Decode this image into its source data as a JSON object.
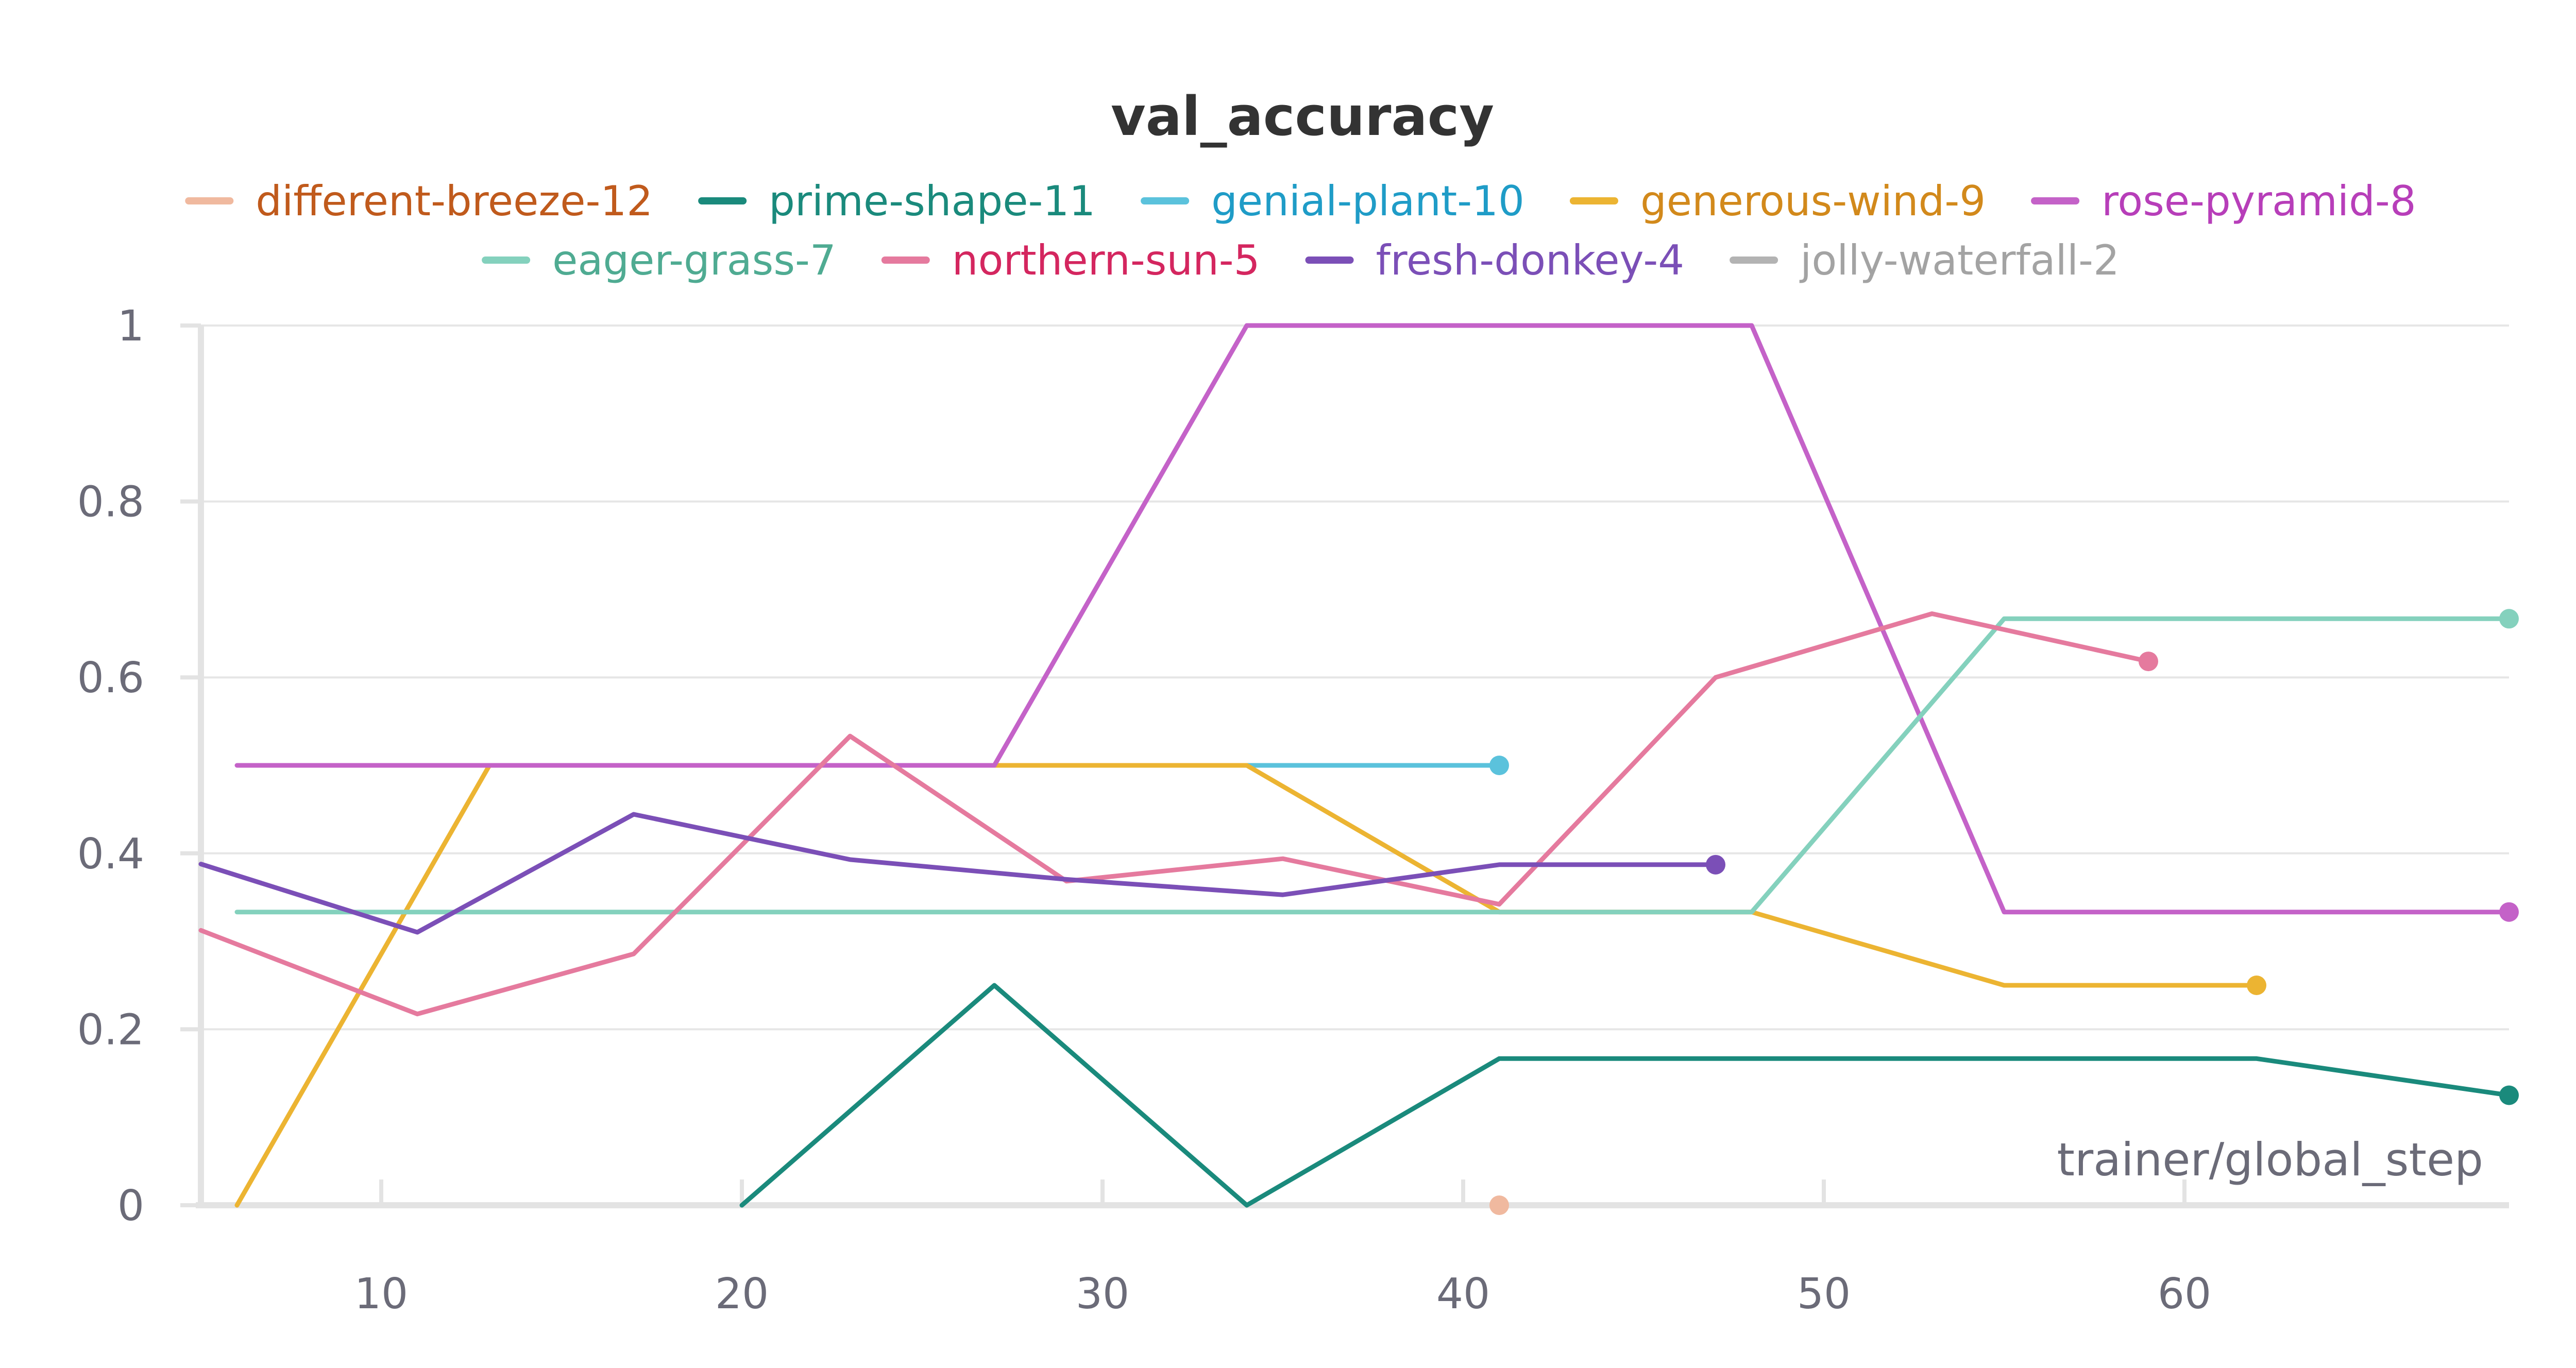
{
  "chart_data": {
    "type": "line",
    "title": "val_accuracy",
    "xlabel": "trainer/global_step",
    "ylabel": "",
    "xlim": [
      5,
      69
    ],
    "ylim": [
      0,
      1
    ],
    "x_ticks": [
      10,
      20,
      30,
      40,
      50,
      60
    ],
    "y_ticks": [
      0,
      0.2,
      0.4,
      0.6,
      0.8,
      1
    ],
    "y_tick_labels": [
      "0",
      "0.2",
      "0.4",
      "0.6",
      "0.8",
      "1"
    ],
    "grid": true,
    "legend_position": "top",
    "series": [
      {
        "name": "different-breeze-12",
        "line_color": "#f0b99f",
        "label_color": "#c05a1c",
        "points": [
          [
            41,
            0
          ]
        ]
      },
      {
        "name": "prime-shape-11",
        "line_color": "#1a8a7c",
        "label_color": "#1a8a7c",
        "points": [
          [
            20,
            0
          ],
          [
            27,
            0.25
          ],
          [
            34,
            0
          ],
          [
            41,
            0.1667
          ],
          [
            48,
            0.1667
          ],
          [
            55,
            0.1667
          ],
          [
            62,
            0.1667
          ],
          [
            69,
            0.125
          ]
        ]
      },
      {
        "name": "genial-plant-10",
        "line_color": "#5bc2dc",
        "label_color": "#1f9cc7",
        "points": [
          [
            34,
            0.5
          ],
          [
            41,
            0.5
          ]
        ]
      },
      {
        "name": "generous-wind-9",
        "line_color": "#ecb432",
        "label_color": "#d2891b",
        "points": [
          [
            6,
            0
          ],
          [
            13,
            0.5
          ],
          [
            20,
            0.5
          ],
          [
            27,
            0.5
          ],
          [
            34,
            0.5
          ],
          [
            41,
            0.3333
          ],
          [
            48,
            0.3333
          ],
          [
            55,
            0.25
          ],
          [
            62,
            0.25
          ]
        ]
      },
      {
        "name": "rose-pyramid-8",
        "line_color": "#c462c8",
        "label_color": "#b73eb9",
        "points": [
          [
            6,
            0.5
          ],
          [
            13,
            0.5
          ],
          [
            20,
            0.5
          ],
          [
            27,
            0.5
          ],
          [
            34,
            1
          ],
          [
            41,
            1
          ],
          [
            48,
            1
          ],
          [
            55,
            0.3333
          ],
          [
            62,
            0.3333
          ],
          [
            69,
            0.3333
          ]
        ]
      },
      {
        "name": "eager-grass-7",
        "line_color": "#84d1bd",
        "label_color": "#4fab92",
        "points": [
          [
            6,
            0.3333
          ],
          [
            13,
            0.3333
          ],
          [
            20,
            0.3333
          ],
          [
            27,
            0.3333
          ],
          [
            34,
            0.3333
          ],
          [
            41,
            0.3333
          ],
          [
            48,
            0.3333
          ],
          [
            55,
            0.6667
          ],
          [
            62,
            0.6667
          ],
          [
            69,
            0.6667
          ]
        ]
      },
      {
        "name": "northern-sun-5",
        "line_color": "#e57a9e",
        "label_color": "#d4265f",
        "points": [
          [
            5,
            0.3125
          ],
          [
            11,
            0.2174
          ],
          [
            17,
            0.2857
          ],
          [
            23,
            0.5333
          ],
          [
            29,
            0.3684
          ],
          [
            35,
            0.3939
          ],
          [
            41,
            0.3421
          ],
          [
            47,
            0.6
          ],
          [
            53,
            0.6724
          ],
          [
            59,
            0.6182
          ]
        ]
      },
      {
        "name": "fresh-donkey-4",
        "line_color": "#7b4fb7",
        "label_color": "#7b4fb7",
        "points": [
          [
            5,
            0.3878
          ],
          [
            11,
            0.3103
          ],
          [
            17,
            0.4444
          ],
          [
            23,
            0.3929
          ],
          [
            29,
            0.3704
          ],
          [
            35,
            0.3529
          ],
          [
            41,
            0.3871
          ],
          [
            47,
            0.3871
          ]
        ]
      },
      {
        "name": "jolly-waterfall-2",
        "line_color": "#b3b3b3",
        "label_color": "#a3a3a3",
        "points": []
      }
    ]
  }
}
